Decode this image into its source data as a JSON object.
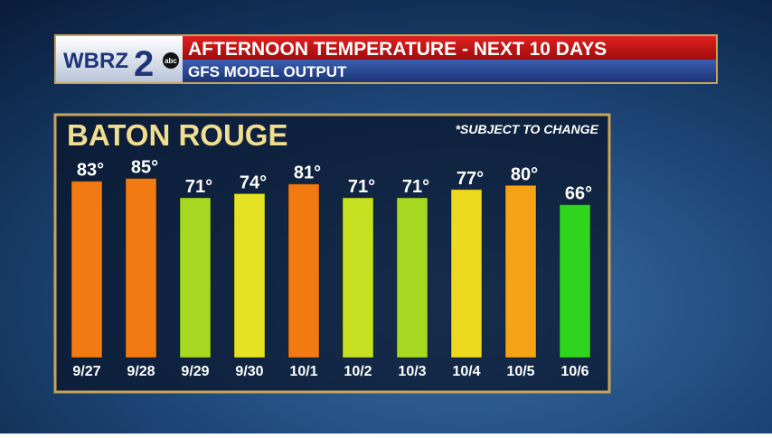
{
  "chart_data": {
    "type": "bar",
    "logo": {
      "station": "WBRZ",
      "number": "2",
      "network": "abc"
    },
    "title": "AFTERNOON TEMPERATURE - NEXT 10 DAYS",
    "subtitle": "GFS MODEL OUTPUT",
    "location": "BATON ROUGE",
    "note": "*SUBJECT TO CHANGE",
    "categories": [
      "9/27",
      "9/28",
      "9/29",
      "9/30",
      "10/1",
      "10/2",
      "10/3",
      "10/4",
      "10/5",
      "10/6"
    ],
    "values": [
      83,
      85,
      71,
      74,
      81,
      71,
      71,
      77,
      80,
      66
    ],
    "value_labels": [
      "83°",
      "85°",
      "71°",
      "74°",
      "81°",
      "71°",
      "71°",
      "77°",
      "80°",
      "66°"
    ],
    "colors": [
      "#f27a12",
      "#f27a12",
      "#a6d822",
      "#e4e222",
      "#f27a12",
      "#c6e022",
      "#a6d822",
      "#ecd81c",
      "#f4a414",
      "#2ed41e"
    ]
  }
}
